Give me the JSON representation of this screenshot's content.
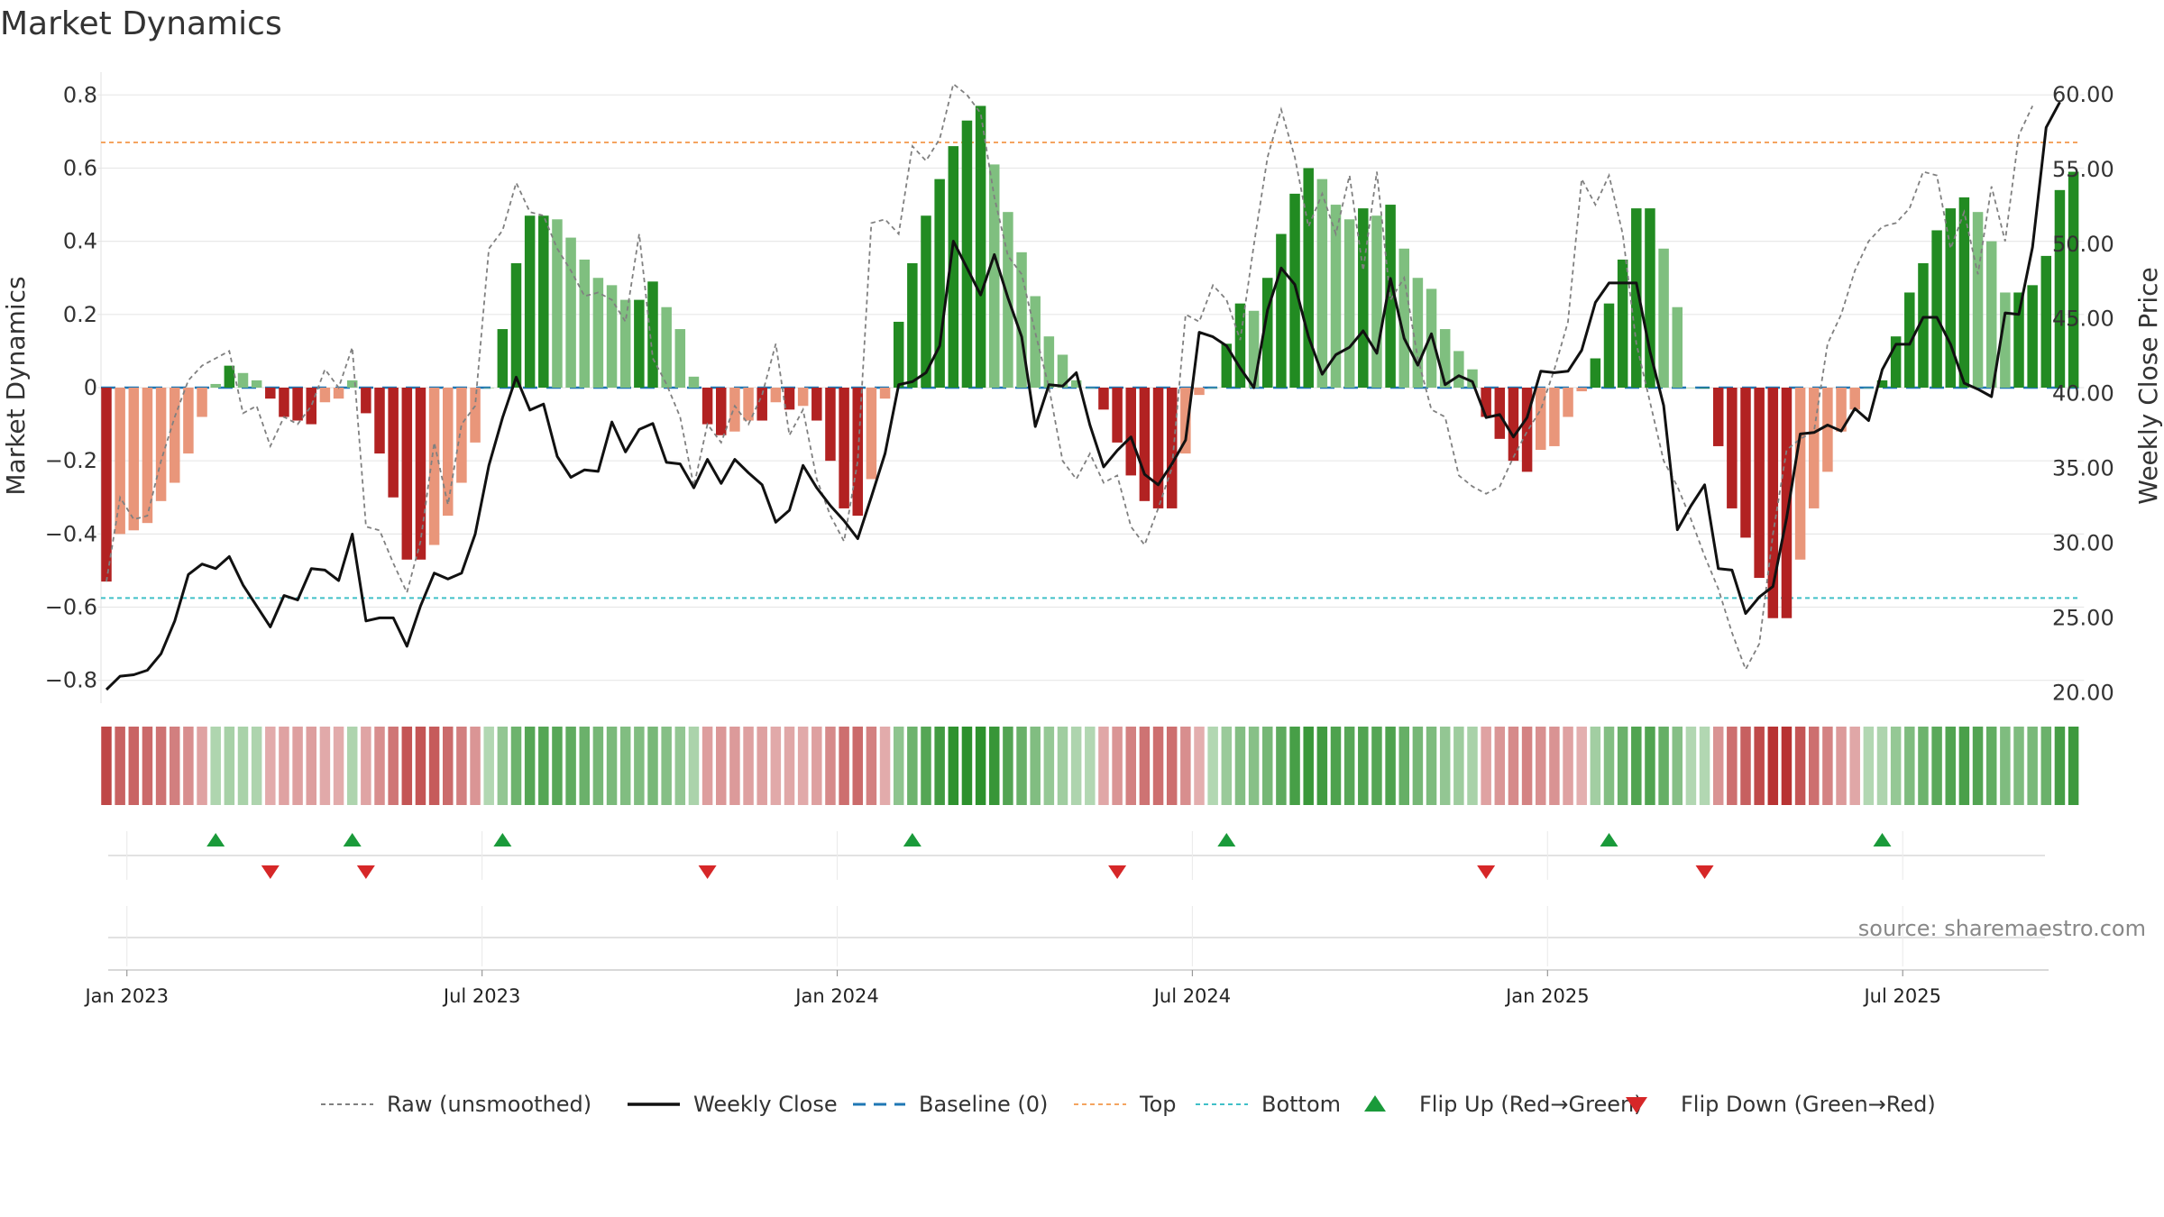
{
  "title": "Market Dynamics",
  "source": "source: sharemaestro.com",
  "chart_data": {
    "type": "bar",
    "title": "Market Dynamics",
    "ylabel": "Market Dynamics",
    "y2label": "Weekly Close Price",
    "ylim": [
      -0.85,
      0.85
    ],
    "y2lim": [
      19.6,
      61.2
    ],
    "yticks": [
      -0.8,
      -0.6,
      -0.4,
      -0.2,
      0,
      0.2,
      0.4,
      0.6,
      0.8
    ],
    "yticklabels": [
      "−0.8",
      "−0.6",
      "−0.4",
      "−0.2",
      "0",
      "0.2",
      "0.4",
      "0.6",
      "0.8"
    ],
    "y2ticks": [
      20,
      25,
      30,
      35,
      40,
      45,
      50,
      55,
      60
    ],
    "y2ticklabels": [
      "20.00",
      "25.00",
      "30.00",
      "35.00",
      "40.00",
      "45.00",
      "50.00",
      "55.00",
      "60.00"
    ],
    "xlabels": [
      {
        "label": "Jan 2023",
        "index": 1.5
      },
      {
        "label": "Jul 2023",
        "index": 27.5
      },
      {
        "label": "Jan 2024",
        "index": 53.5
      },
      {
        "label": "Jul 2024",
        "index": 79.5
      },
      {
        "label": "Jan 2025",
        "index": 105.5
      },
      {
        "label": "Jul 2025",
        "index": 131.5
      }
    ],
    "top_line": 0.67,
    "bottom_line": -0.575,
    "baseline": 0,
    "grid": true,
    "legend_position": "bottom",
    "colors": {
      "strong_green": "#228b22",
      "light_green": "#7fbf7f",
      "strong_red": "#b22222",
      "light_red": "#e9967a",
      "close_line": "#111111",
      "raw_line": "#808080",
      "baseline": "#1f77b4",
      "top": "#f4a460",
      "bottom": "#40c0c8",
      "flip_up": "#1a9a3a",
      "flip_down": "#d62728"
    },
    "series": [
      {
        "name": "Market Dynamics",
        "values": [
          -0.53,
          -0.4,
          -0.39,
          -0.37,
          -0.31,
          -0.26,
          -0.18,
          -0.08,
          0.01,
          0.06,
          0.04,
          0.02,
          -0.03,
          -0.08,
          -0.09,
          -0.1,
          -0.04,
          -0.03,
          0.02,
          -0.07,
          -0.18,
          -0.3,
          -0.47,
          -0.47,
          -0.43,
          -0.35,
          -0.26,
          -0.15,
          0.0,
          0.16,
          0.34,
          0.47,
          0.47,
          0.46,
          0.41,
          0.35,
          0.3,
          0.28,
          0.24,
          0.24,
          0.29,
          0.22,
          0.16,
          0.03,
          -0.1,
          -0.13,
          -0.12,
          -0.09,
          -0.09,
          -0.04,
          -0.06,
          -0.05,
          -0.09,
          -0.2,
          -0.33,
          -0.35,
          -0.25,
          -0.03,
          0.18,
          0.34,
          0.47,
          0.57,
          0.66,
          0.73,
          0.77,
          0.61,
          0.48,
          0.37,
          0.25,
          0.14,
          0.09,
          0.02,
          0.0,
          -0.06,
          -0.15,
          -0.24,
          -0.31,
          -0.33,
          -0.33,
          -0.18,
          -0.02,
          0.0,
          0.12,
          0.23,
          0.21,
          0.3,
          0.42,
          0.53,
          0.6,
          0.57,
          0.5,
          0.46,
          0.49,
          0.47,
          0.5,
          0.38,
          0.3,
          0.27,
          0.16,
          0.1,
          0.05,
          -0.08,
          -0.14,
          -0.2,
          -0.23,
          -0.17,
          -0.16,
          -0.08,
          -0.01,
          0.08,
          0.23,
          0.35,
          0.49,
          0.49,
          0.38,
          0.22,
          0.0,
          0.0,
          -0.16,
          -0.33,
          -0.41,
          -0.52,
          -0.63,
          -0.63,
          -0.47,
          -0.33,
          -0.23,
          -0.12,
          -0.06,
          0.0,
          0.02,
          0.14,
          0.26,
          0.34,
          0.43,
          0.49,
          0.52,
          0.48,
          0.4,
          0.26,
          0.26,
          0.28,
          0.36,
          0.54,
          0.59
        ]
      },
      {
        "name": "Weekly Close",
        "values": [
          20.2,
          21.1,
          21.2,
          21.5,
          22.6,
          24.8,
          27.9,
          28.6,
          28.3,
          29.1,
          27.2,
          25.8,
          24.4,
          26.5,
          26.2,
          28.3,
          28.2,
          27.5,
          30.6,
          24.8,
          25.0,
          25.0,
          23.1,
          25.8,
          28.0,
          27.6,
          28.0,
          30.6,
          35.2,
          38.4,
          41.1,
          38.9,
          39.3,
          35.8,
          34.4,
          34.9,
          34.8,
          38.1,
          36.1,
          37.6,
          38.0,
          35.4,
          35.3,
          33.7,
          35.6,
          34.0,
          35.6,
          34.7,
          33.9,
          31.4,
          32.2,
          35.2,
          33.7,
          32.5,
          31.5,
          30.3,
          33.1,
          36.0,
          40.6,
          40.8,
          41.4,
          43.2,
          50.2,
          48.4,
          46.6,
          49.3,
          46.4,
          43.8,
          37.8,
          40.6,
          40.5,
          41.4,
          37.9,
          35.1,
          36.2,
          37.1,
          34.6,
          33.9,
          35.3,
          36.9,
          44.1,
          43.8,
          43.2,
          41.7,
          40.4,
          45.6,
          48.4,
          47.3,
          43.8,
          41.3,
          42.6,
          43.1,
          44.2,
          42.7,
          47.7,
          43.7,
          41.9,
          44.0,
          40.6,
          41.2,
          40.8,
          38.4,
          38.6,
          37.1,
          38.4,
          41.5,
          41.4,
          41.5,
          42.9,
          46.1,
          47.4,
          47.4,
          47.4,
          42.8,
          39.2,
          30.9,
          32.5,
          33.9,
          28.3,
          28.2,
          25.3,
          26.4,
          27.1,
          31.7,
          37.3,
          37.4,
          37.9,
          37.5,
          39.0,
          38.2,
          41.6,
          43.3,
          43.3,
          45.1,
          45.1,
          43.3,
          40.7,
          40.3,
          39.8,
          45.4,
          45.3,
          49.8,
          57.8,
          59.5
        ]
      },
      {
        "name": "Raw (unsmoothed)",
        "values": [
          -0.53,
          -0.3,
          -0.36,
          -0.35,
          -0.2,
          -0.08,
          0.02,
          0.06,
          0.08,
          0.1,
          -0.07,
          -0.05,
          -0.16,
          -0.08,
          -0.1,
          -0.05,
          0.05,
          0.0,
          0.11,
          -0.38,
          -0.39,
          -0.48,
          -0.56,
          -0.42,
          -0.15,
          -0.32,
          -0.1,
          -0.05,
          0.38,
          0.43,
          0.56,
          0.48,
          0.47,
          0.38,
          0.32,
          0.25,
          0.26,
          0.24,
          0.18,
          0.42,
          0.08,
          0.01,
          -0.08,
          -0.27,
          -0.1,
          -0.15,
          -0.05,
          -0.1,
          -0.02,
          0.12,
          -0.13,
          -0.06,
          -0.25,
          -0.35,
          -0.42,
          -0.2,
          0.45,
          0.46,
          0.42,
          0.66,
          0.62,
          0.68,
          0.83,
          0.8,
          0.75,
          0.52,
          0.36,
          0.31,
          0.15,
          0.0,
          -0.2,
          -0.25,
          -0.18,
          -0.26,
          -0.24,
          -0.38,
          -0.43,
          -0.33,
          -0.22,
          0.2,
          0.18,
          0.28,
          0.24,
          0.13,
          0.39,
          0.63,
          0.76,
          0.63,
          0.44,
          0.53,
          0.42,
          0.58,
          0.32,
          0.59,
          0.24,
          0.3,
          0.08,
          -0.06,
          -0.08,
          -0.24,
          -0.27,
          -0.29,
          -0.27,
          -0.19,
          -0.12,
          -0.06,
          0.05,
          0.18,
          0.57,
          0.5,
          0.58,
          0.42,
          0.12,
          -0.04,
          -0.2,
          -0.27,
          -0.36,
          -0.46,
          -0.55,
          -0.67,
          -0.77,
          -0.7,
          -0.4,
          -0.17,
          -0.14,
          -0.12,
          0.12,
          0.2,
          0.32,
          0.4,
          0.44,
          0.45,
          0.49,
          0.59,
          0.58,
          0.38,
          0.48,
          0.31,
          0.55,
          0.4,
          0.69,
          0.77
        ]
      }
    ],
    "flip_up_indices": [
      8,
      18,
      29,
      59,
      82,
      110,
      130
    ],
    "flip_down_indices": [
      12,
      19,
      44,
      74,
      101,
      117
    ],
    "legend": [
      "Raw (unsmoothed)",
      "Weekly Close",
      "Baseline (0)",
      "Top",
      "Bottom",
      "Flip Up (Red→Green)",
      "Flip Down (Green→Red)"
    ]
  }
}
